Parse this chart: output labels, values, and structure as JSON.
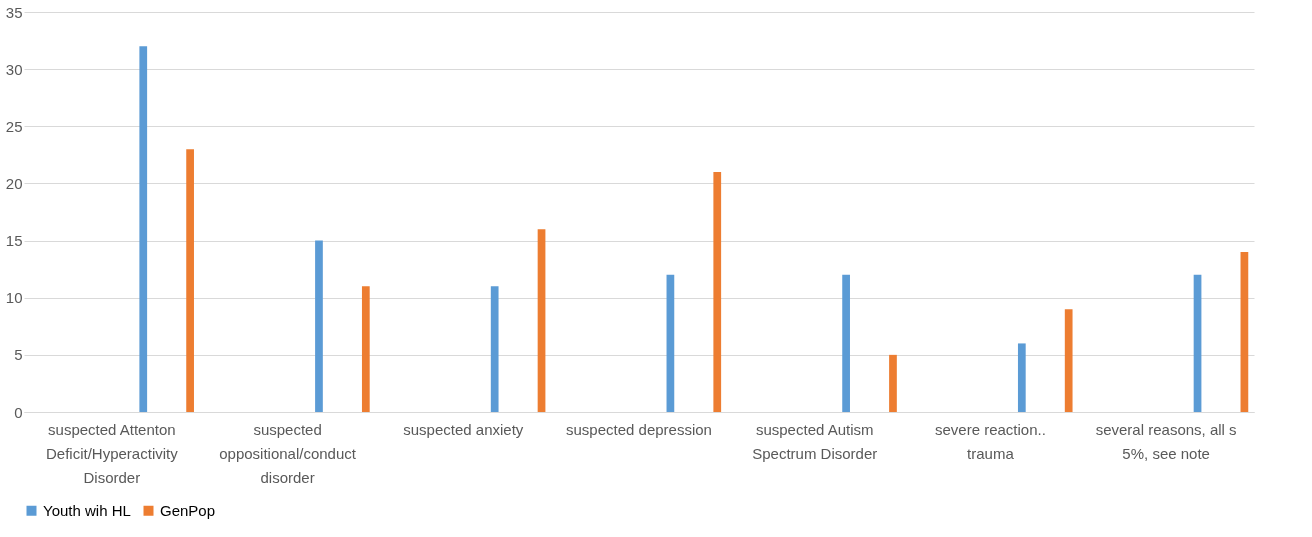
{
  "chart_data": {
    "type": "bar",
    "categories": [
      "suspected Attenton Deficit/Hyperactivity Disorder",
      "suspected oppositional/conduct disorder",
      "suspected anxiety",
      "suspected depression",
      "suspected Autism Spectrum Disorder",
      "severe reaction.. trauma",
      "several reasons, all s 5%, see note"
    ],
    "series": [
      {
        "name": "Youth wih HL",
        "color": "#5b9bd5",
        "values": [
          32,
          15,
          11,
          12,
          12,
          6,
          12
        ]
      },
      {
        "name": "GenPop",
        "color": "#ed7d31",
        "values": [
          23,
          11,
          16,
          21,
          5,
          9,
          14
        ]
      }
    ],
    "ylim": [
      0,
      35
    ],
    "yticks": [
      0,
      5,
      10,
      15,
      20,
      25,
      30,
      35
    ],
    "grid": "y",
    "legend": "bottom"
  }
}
